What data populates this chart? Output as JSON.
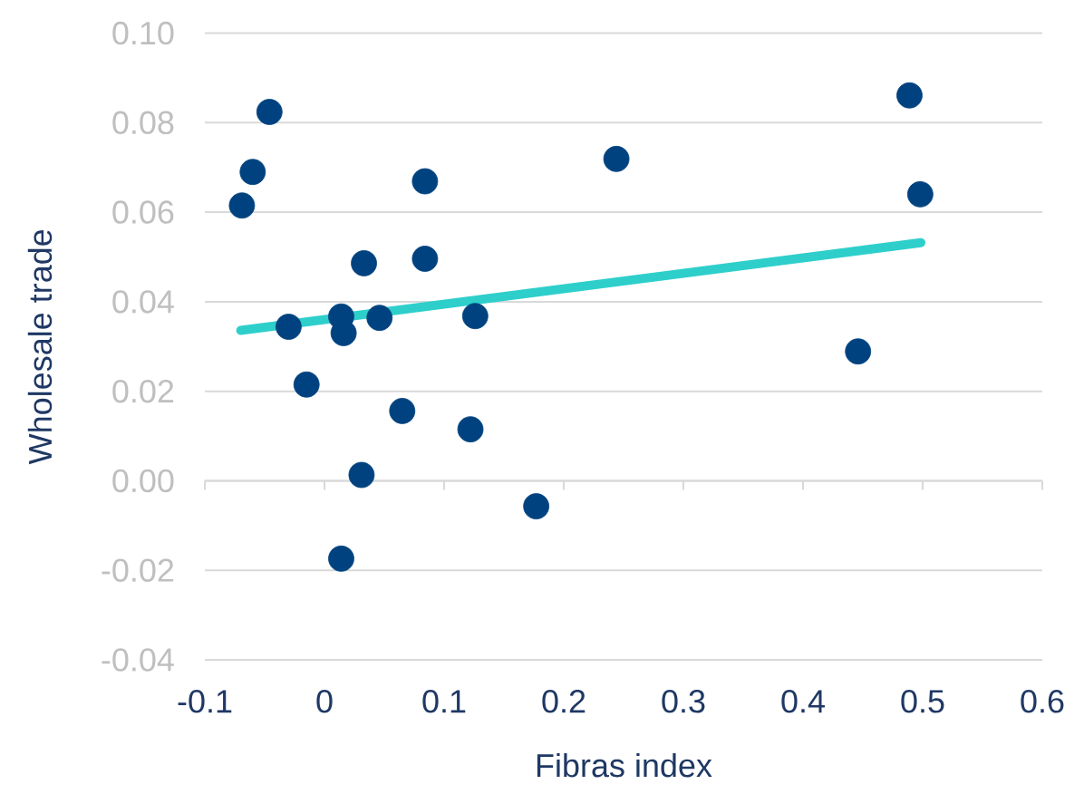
{
  "chart_data": {
    "type": "scatter",
    "xlabel": "Fibras index",
    "ylabel": "Wholesale trade",
    "xlim": [
      -0.1,
      0.6
    ],
    "xticks": [
      -0.1,
      0,
      0.1,
      0.2,
      0.3,
      0.4,
      0.5,
      0.6
    ],
    "ylim": [
      -0.04,
      0.1
    ],
    "yticks": [
      {
        "value": -0.04,
        "label": "-0.04"
      },
      {
        "value": -0.02,
        "label": "-0.02"
      },
      {
        "value": 0,
        "label": "0.00"
      },
      {
        "value": 0.02,
        "label": "0.02"
      },
      {
        "value": 0.04,
        "label": "0.04"
      },
      {
        "value": 0.06,
        "label": "0.06"
      },
      {
        "value": 0.08,
        "label": "0.08"
      },
      {
        "value": 0.1,
        "label": "0.10"
      }
    ],
    "grid": "y",
    "marker": "circle",
    "series": [
      {
        "type": "line",
        "color": "#2ecfcb",
        "marker": "none",
        "line_style": "solid",
        "x": [
          -0.07,
          0.4985
        ],
        "values": [
          0.0336,
          0.0532
        ]
      },
      {
        "color": "#00427f",
        "x": [
          -0.069,
          -0.06,
          -0.046,
          -0.03,
          -0.015,
          0.014,
          0.016,
          0.014,
          0.031,
          0.033,
          0.046,
          0.065,
          0.084,
          0.084,
          0.122,
          0.126,
          0.177,
          0.244,
          0.446,
          0.489,
          0.498
        ],
        "values": [
          0.0615,
          0.069,
          0.0824,
          0.0344,
          0.0215,
          0.0367,
          0.033,
          -0.0174,
          0.0013,
          0.0486,
          0.0364,
          0.0156,
          0.0669,
          0.0496,
          0.0115,
          0.0368,
          -0.0057,
          0.0719,
          0.0289,
          0.0861,
          0.064
        ]
      }
    ]
  }
}
